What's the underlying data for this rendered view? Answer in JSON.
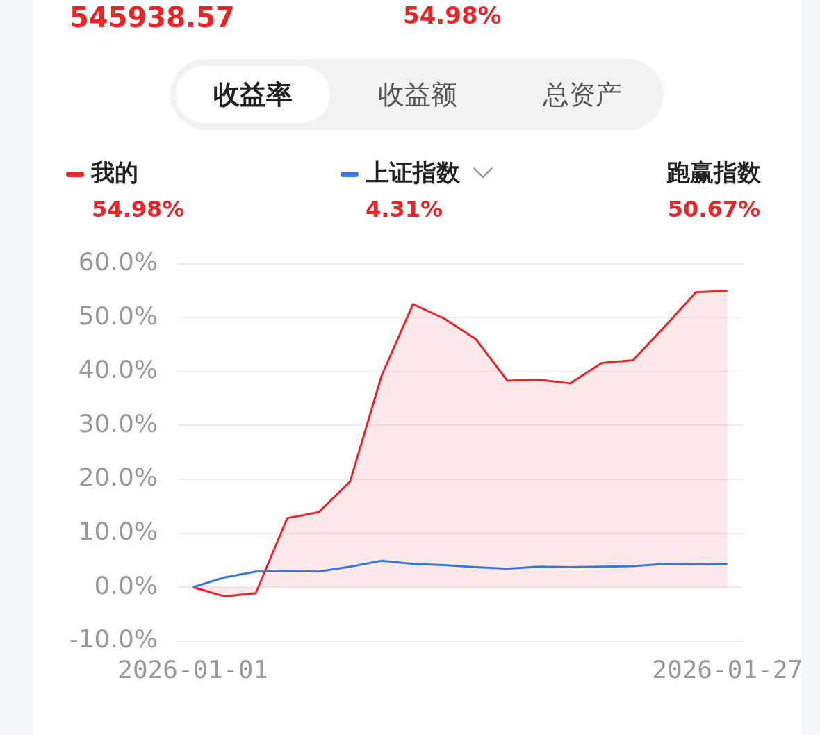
{
  "chart_data": {
    "type": "line",
    "categories": [
      "2026-01-01",
      null,
      null,
      null,
      null,
      null,
      null,
      null,
      null,
      null,
      null,
      null,
      null,
      null,
      null,
      null,
      null,
      "2026-01-27"
    ],
    "series": [
      {
        "name": "我的",
        "type": "area",
        "color": "#e8262a",
        "values": [
          0,
          -1.7,
          -1.1,
          12.8,
          13.9,
          19.6,
          39.2,
          52.5,
          49.8,
          46.0,
          38.3,
          38.5,
          37.8,
          41.6,
          42.1,
          48.3,
          54.7,
          55.0
        ]
      },
      {
        "name": "上证指数",
        "type": "line",
        "color": "#3a78d8",
        "values": [
          0,
          1.8,
          2.9,
          3.0,
          2.9,
          3.8,
          4.9,
          4.3,
          4.1,
          3.7,
          3.4,
          3.8,
          3.7,
          3.8,
          3.9,
          4.3,
          4.2,
          4.3
        ]
      }
    ],
    "ylim": [
      -10,
      60
    ],
    "yticks": [
      {
        "value": -10,
        "label": "-10.0%"
      },
      {
        "value": 0,
        "label": "0.0%"
      },
      {
        "value": 10,
        "label": "10.0%"
      },
      {
        "value": 20,
        "label": "20.0%"
      },
      {
        "value": 30,
        "label": "30.0%"
      },
      {
        "value": 40,
        "label": "40.0%"
      },
      {
        "value": 50,
        "label": "50.0%"
      },
      {
        "value": 60,
        "label": "60.0%"
      }
    ],
    "grid": "y",
    "legend": "top",
    "marker": "none",
    "annotations": [
      "545938.57",
      "54.98%",
      "收益率",
      "收益额",
      "总资产",
      "54.98%",
      "4.31%",
      "跑赢指数",
      "50.67%"
    ]
  }
}
